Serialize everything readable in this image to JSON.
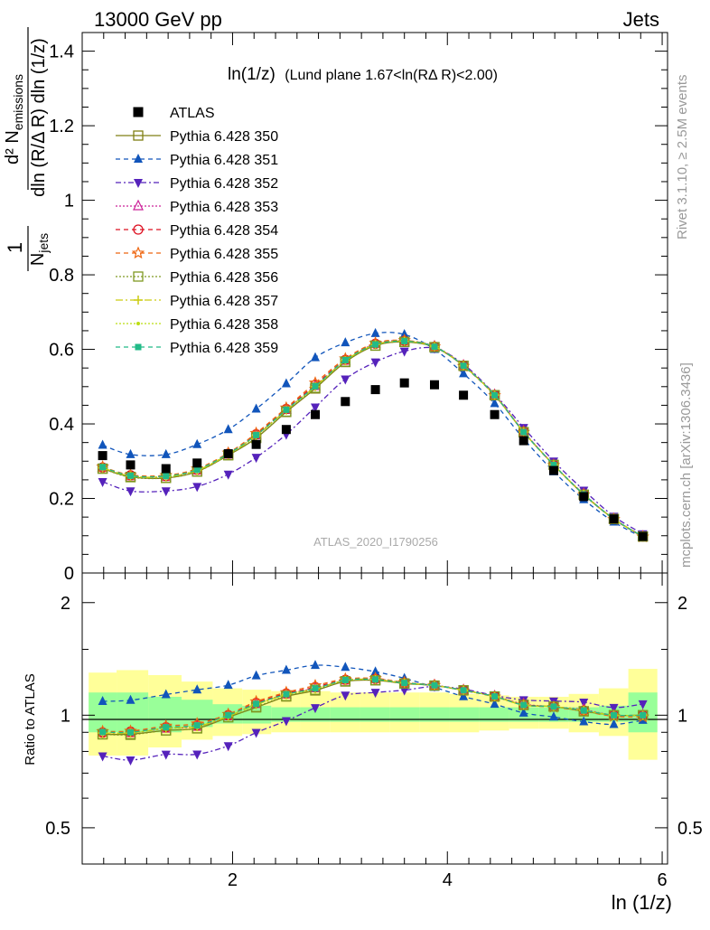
{
  "header": {
    "left": "13000 GeV pp",
    "right": "Jets"
  },
  "plot_title": {
    "main": "ln(1/z)",
    "detail": "(Lund plane 1.67<ln(RΔ R)<2.00)"
  },
  "ylabel_upper": {
    "one": "1",
    "njets": "N",
    "njets_sub": "jets",
    "num": "d² N",
    "num_sub": "emissions",
    "den": "dln (R/Δ R) dln (1/z)"
  },
  "ylabel_lower": "Ratio to ATLAS",
  "xlabel": "ln (1/z)",
  "side_rivet": "Rivet 3.1.10, ≥ 2.5M events",
  "side_mcplots": "mcplots.cern.ch [arXiv:1306.3436]",
  "analysis_id": "ATLAS_2020_I1790256",
  "colors": {
    "ATLAS": "#000000",
    "p350": "#7f7f14",
    "p351": "#1155bb",
    "p352": "#5522bb",
    "p353": "#cc2299",
    "p354": "#dd1122",
    "p355": "#ee6611",
    "p356": "#7f9922",
    "p357": "#cccc11",
    "p358": "#bbdd11",
    "p359": "#22bb88",
    "band_inner": "#99ff99",
    "band_outer": "#ffff99"
  },
  "chart_data": {
    "type": "line",
    "x": [
      0.79,
      1.05,
      1.38,
      1.67,
      1.96,
      2.22,
      2.5,
      2.77,
      3.05,
      3.33,
      3.6,
      3.88,
      4.15,
      4.44,
      4.71,
      4.99,
      5.27,
      5.55,
      5.82
    ],
    "xlim": [
      0.6,
      6.05
    ],
    "xticks": [
      "2",
      "4",
      "6"
    ],
    "upper": {
      "ylim": [
        0,
        1.45
      ],
      "yticks": [
        "0.2",
        "0.4",
        "0.6",
        "0.8",
        "1",
        "1.2",
        "1.4"
      ],
      "data": {
        "name": "ATLAS",
        "values": [
          0.315,
          0.29,
          0.28,
          0.295,
          0.32,
          0.345,
          0.385,
          0.425,
          0.46,
          0.492,
          0.51,
          0.505,
          0.477,
          0.425,
          0.355,
          0.275,
          0.205,
          0.145,
          0.098
        ]
      },
      "series": [
        {
          "name": "Pythia 6.428 350",
          "key": "p350",
          "values": [
            0.28,
            0.258,
            0.255,
            0.272,
            0.316,
            0.362,
            0.432,
            0.495,
            0.566,
            0.61,
            0.62,
            0.606,
            0.556,
            0.477,
            0.378,
            0.29,
            0.21,
            0.145,
            0.098
          ]
        },
        {
          "name": "Pythia 6.428 351",
          "key": "p351",
          "values": [
            0.343,
            0.318,
            0.318,
            0.345,
            0.385,
            0.44,
            0.508,
            0.578,
            0.618,
            0.643,
            0.64,
            0.6,
            0.535,
            0.455,
            0.36,
            0.272,
            0.197,
            0.137,
            0.095
          ]
        },
        {
          "name": "Pythia 6.428 352",
          "key": "p352",
          "values": [
            0.245,
            0.22,
            0.22,
            0.232,
            0.265,
            0.31,
            0.372,
            0.445,
            0.52,
            0.566,
            0.595,
            0.603,
            0.56,
            0.48,
            0.39,
            0.3,
            0.222,
            0.152,
            0.105
          ]
        },
        {
          "name": "Pythia 6.428 353",
          "key": "p353",
          "values": [
            0.283,
            0.26,
            0.258,
            0.275,
            0.318,
            0.37,
            0.438,
            0.502,
            0.57,
            0.615,
            0.623,
            0.608,
            0.557,
            0.478,
            0.38,
            0.29,
            0.212,
            0.145,
            0.098
          ]
        },
        {
          "name": "Pythia 6.428 354",
          "key": "p354",
          "values": [
            0.283,
            0.262,
            0.26,
            0.277,
            0.32,
            0.372,
            0.44,
            0.505,
            0.572,
            0.615,
            0.623,
            0.607,
            0.556,
            0.477,
            0.379,
            0.29,
            0.211,
            0.145,
            0.098
          ]
        },
        {
          "name": "Pythia 6.428 355",
          "key": "p355",
          "values": [
            0.285,
            0.263,
            0.262,
            0.28,
            0.322,
            0.375,
            0.443,
            0.51,
            0.575,
            0.617,
            0.624,
            0.607,
            0.555,
            0.476,
            0.378,
            0.289,
            0.21,
            0.144,
            0.097
          ]
        },
        {
          "name": "Pythia 6.428 356",
          "key": "p356",
          "values": [
            0.28,
            0.257,
            0.255,
            0.272,
            0.316,
            0.363,
            0.433,
            0.497,
            0.567,
            0.61,
            0.62,
            0.606,
            0.556,
            0.477,
            0.378,
            0.29,
            0.21,
            0.145,
            0.098
          ]
        },
        {
          "name": "Pythia 6.428 357",
          "key": "p357",
          "values": [
            0.282,
            0.26,
            0.258,
            0.275,
            0.318,
            0.368,
            0.437,
            0.5,
            0.57,
            0.613,
            0.622,
            0.607,
            0.556,
            0.477,
            0.378,
            0.29,
            0.211,
            0.145,
            0.098
          ]
        },
        {
          "name": "Pythia 6.428 358",
          "key": "p358",
          "values": [
            0.283,
            0.26,
            0.259,
            0.276,
            0.319,
            0.369,
            0.437,
            0.5,
            0.57,
            0.613,
            0.622,
            0.607,
            0.556,
            0.477,
            0.378,
            0.29,
            0.211,
            0.145,
            0.098
          ]
        },
        {
          "name": "Pythia 6.428 359",
          "key": "p359",
          "values": [
            0.284,
            0.261,
            0.26,
            0.277,
            0.32,
            0.37,
            0.438,
            0.501,
            0.571,
            0.613,
            0.622,
            0.607,
            0.556,
            0.477,
            0.378,
            0.29,
            0.211,
            0.145,
            0.098
          ]
        }
      ]
    },
    "lower": {
      "ylim": [
        0.4,
        2.4
      ],
      "log_scale": true,
      "yticks": [
        "0.5",
        "1",
        "2"
      ],
      "band_inner": {
        "lo": [
          0.9,
          0.9,
          0.9,
          0.93,
          0.95,
          0.95,
          0.96,
          0.96,
          0.96,
          0.96,
          0.96,
          0.96,
          0.96,
          0.96,
          0.96,
          0.96,
          0.96,
          0.96,
          0.9
        ],
        "hi": [
          1.15,
          1.15,
          1.12,
          1.1,
          1.07,
          1.06,
          1.05,
          1.05,
          1.05,
          1.05,
          1.05,
          1.05,
          1.05,
          1.05,
          1.05,
          1.05,
          1.05,
          1.06,
          1.15
        ]
      },
      "band_outer": {
        "lo": [
          0.78,
          0.78,
          0.82,
          0.86,
          0.88,
          0.89,
          0.9,
          0.9,
          0.9,
          0.9,
          0.9,
          0.9,
          0.9,
          0.91,
          0.92,
          0.92,
          0.9,
          0.88,
          0.76
        ]
      },
      "band_outer_hi": [
        1.3,
        1.32,
        1.28,
        1.23,
        1.18,
        1.17,
        1.16,
        1.16,
        1.15,
        1.15,
        1.15,
        1.15,
        1.14,
        1.13,
        1.12,
        1.12,
        1.14,
        1.18,
        1.33
      ]
    }
  }
}
